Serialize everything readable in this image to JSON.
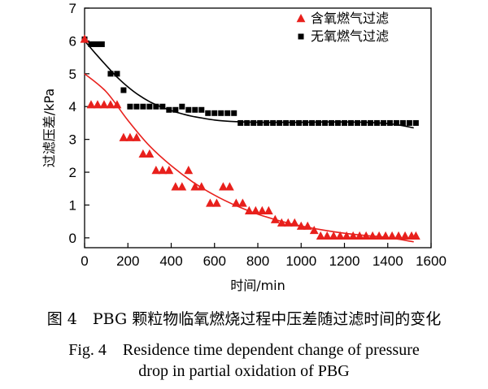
{
  "chart_data": {
    "type": "scatter",
    "xlabel": "时间/min",
    "ylabel": "过滤压差/kPa",
    "xlim": [
      0,
      1600
    ],
    "ylim": [
      -0.3,
      7
    ],
    "xticks": [
      0,
      200,
      400,
      600,
      800,
      1000,
      1200,
      1400,
      1600
    ],
    "yticks": [
      0,
      1,
      2,
      3,
      4,
      5,
      6,
      7
    ],
    "grid": false,
    "legend_position": "top-right",
    "series": [
      {
        "name": "含氧燃气过滤",
        "marker": "triangle",
        "color": "#e8201c",
        "points": [
          [
            0,
            6.05
          ],
          [
            30,
            4.05
          ],
          [
            60,
            4.05
          ],
          [
            90,
            4.05
          ],
          [
            120,
            4.05
          ],
          [
            150,
            4.05
          ],
          [
            180,
            3.05
          ],
          [
            210,
            3.05
          ],
          [
            240,
            3.05
          ],
          [
            270,
            2.55
          ],
          [
            300,
            2.55
          ],
          [
            330,
            2.05
          ],
          [
            360,
            2.05
          ],
          [
            390,
            2.05
          ],
          [
            420,
            1.55
          ],
          [
            450,
            1.55
          ],
          [
            480,
            2.05
          ],
          [
            510,
            1.55
          ],
          [
            540,
            1.55
          ],
          [
            580,
            1.05
          ],
          [
            610,
            1.05
          ],
          [
            640,
            1.55
          ],
          [
            670,
            1.55
          ],
          [
            700,
            1.05
          ],
          [
            730,
            1.05
          ],
          [
            760,
            0.82
          ],
          [
            790,
            0.82
          ],
          [
            820,
            0.82
          ],
          [
            850,
            0.82
          ],
          [
            880,
            0.55
          ],
          [
            910,
            0.45
          ],
          [
            940,
            0.45
          ],
          [
            970,
            0.45
          ],
          [
            1000,
            0.35
          ],
          [
            1030,
            0.35
          ],
          [
            1060,
            0.22
          ],
          [
            1090,
            0.05
          ],
          [
            1120,
            0.05
          ],
          [
            1150,
            0.05
          ],
          [
            1180,
            0.05
          ],
          [
            1210,
            0.05
          ],
          [
            1240,
            0.05
          ],
          [
            1270,
            0.05
          ],
          [
            1300,
            0.05
          ],
          [
            1330,
            0.05
          ],
          [
            1360,
            0.05
          ],
          [
            1390,
            0.05
          ],
          [
            1420,
            0.05
          ],
          [
            1450,
            0.05
          ],
          [
            1480,
            0.05
          ],
          [
            1510,
            0.05
          ],
          [
            1530,
            0.05
          ]
        ],
        "fit": [
          [
            0,
            5.0
          ],
          [
            100,
            4.45
          ],
          [
            200,
            3.58
          ],
          [
            300,
            2.8
          ],
          [
            400,
            2.2
          ],
          [
            500,
            1.7
          ],
          [
            600,
            1.3
          ],
          [
            700,
            0.98
          ],
          [
            800,
            0.72
          ],
          [
            900,
            0.52
          ],
          [
            1000,
            0.36
          ],
          [
            1100,
            0.24
          ],
          [
            1200,
            0.14
          ],
          [
            1300,
            0.07
          ],
          [
            1400,
            0.01
          ],
          [
            1520,
            -0.12
          ]
        ]
      },
      {
        "name": "无氧燃气过滤",
        "marker": "square",
        "color": "#000000",
        "points": [
          [
            0,
            6.05
          ],
          [
            30,
            5.9
          ],
          [
            55,
            5.9
          ],
          [
            80,
            5.9
          ],
          [
            120,
            5.0
          ],
          [
            150,
            5.0
          ],
          [
            180,
            4.5
          ],
          [
            210,
            4.0
          ],
          [
            240,
            4.0
          ],
          [
            270,
            4.0
          ],
          [
            300,
            4.0
          ],
          [
            330,
            4.0
          ],
          [
            360,
            4.0
          ],
          [
            390,
            3.9
          ],
          [
            420,
            3.9
          ],
          [
            450,
            4.0
          ],
          [
            480,
            3.9
          ],
          [
            510,
            3.9
          ],
          [
            540,
            3.9
          ],
          [
            570,
            3.8
          ],
          [
            600,
            3.8
          ],
          [
            630,
            3.8
          ],
          [
            660,
            3.8
          ],
          [
            690,
            3.8
          ],
          [
            720,
            3.5
          ],
          [
            750,
            3.5
          ],
          [
            780,
            3.5
          ],
          [
            810,
            3.5
          ],
          [
            840,
            3.5
          ],
          [
            870,
            3.5
          ],
          [
            900,
            3.5
          ],
          [
            930,
            3.5
          ],
          [
            960,
            3.5
          ],
          [
            990,
            3.5
          ],
          [
            1020,
            3.5
          ],
          [
            1050,
            3.5
          ],
          [
            1080,
            3.5
          ],
          [
            1110,
            3.5
          ],
          [
            1140,
            3.5
          ],
          [
            1170,
            3.5
          ],
          [
            1200,
            3.5
          ],
          [
            1230,
            3.5
          ],
          [
            1260,
            3.5
          ],
          [
            1290,
            3.5
          ],
          [
            1320,
            3.5
          ],
          [
            1350,
            3.5
          ],
          [
            1380,
            3.5
          ],
          [
            1410,
            3.5
          ],
          [
            1440,
            3.5
          ],
          [
            1470,
            3.5
          ],
          [
            1500,
            3.5
          ],
          [
            1530,
            3.5
          ]
        ],
        "fit": [
          [
            0,
            6.0
          ],
          [
            50,
            5.62
          ],
          [
            100,
            5.25
          ],
          [
            150,
            4.9
          ],
          [
            200,
            4.6
          ],
          [
            250,
            4.35
          ],
          [
            300,
            4.15
          ],
          [
            350,
            4.0
          ],
          [
            400,
            3.88
          ],
          [
            450,
            3.78
          ],
          [
            500,
            3.7
          ],
          [
            600,
            3.59
          ],
          [
            700,
            3.54
          ],
          [
            800,
            3.52
          ],
          [
            900,
            3.52
          ],
          [
            1000,
            3.52
          ],
          [
            1100,
            3.53
          ],
          [
            1200,
            3.53
          ],
          [
            1300,
            3.52
          ],
          [
            1400,
            3.48
          ],
          [
            1460,
            3.43
          ],
          [
            1520,
            3.35
          ]
        ]
      }
    ]
  },
  "captions": {
    "cn": "图 4　PBG 颗粒物临氧燃烧过程中压差随过滤时间的变化",
    "en_line1": "Fig. 4　Residence time dependent change of pressure",
    "en_line2": "drop in partial oxidation of PBG"
  }
}
